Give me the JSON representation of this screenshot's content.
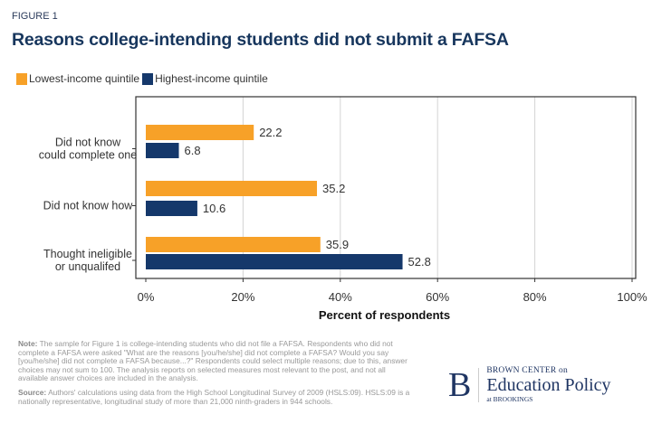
{
  "figure_label": "FIGURE 1",
  "chart_data": {
    "type": "bar",
    "orientation": "horizontal",
    "title": "Reasons college-intending students did not submit a FAFSA",
    "categories": [
      "Did not know could complete one",
      "Did not know how",
      "Thought ineligible or unqualifed"
    ],
    "category_lines": [
      [
        "Did not know",
        "could complete one"
      ],
      [
        "Did not know how"
      ],
      [
        "Thought ineligible",
        "or unqualifed"
      ]
    ],
    "series": [
      {
        "name": "Lowest-income quintile",
        "color": "#f7a128",
        "values": [
          22.2,
          35.2,
          35.9
        ],
        "labels": [
          "22.2",
          "35.2",
          "35.9"
        ]
      },
      {
        "name": "Highest-income quintile",
        "color": "#15386b",
        "values": [
          6.8,
          10.6,
          52.8
        ],
        "labels": [
          "6.8",
          "10.6",
          "52.8"
        ]
      }
    ],
    "xlabel": "Percent of respondents",
    "xlim": [
      0,
      100
    ],
    "xticks": [
      "0%",
      "20%",
      "40%",
      "60%",
      "80%",
      "100%"
    ],
    "grid": true,
    "legend_position": "top-left"
  },
  "note": {
    "label": "Note:",
    "text": "The sample for Figure 1 is college-intending students who did not file a FAFSA. Respondents who did not complete a FAFSA were asked \"What are the reasons [you/he/she] did not complete a FAFSA? Would you say [you/he/she] did not complete a FAFSA because...?\" Respondents could select multiple reasons; due to this, answer choices may not sum to 100. The analysis reports on selected measures most relevant to the post, and not all available answer choices are included in the analysis."
  },
  "source": {
    "label": "Source:",
    "text": "Authors' calculations using data from the High School Longitudinal Survey of 2009 (HSLS:09). HSLS:09 is a nationally representative, longitudinal study of more than 21,000 ninth-graders in 944 schools."
  },
  "logo": {
    "letter": "B",
    "line1": "BROWN CENTER on",
    "line2": "Education Policy",
    "line3": "at BROOKINGS"
  }
}
